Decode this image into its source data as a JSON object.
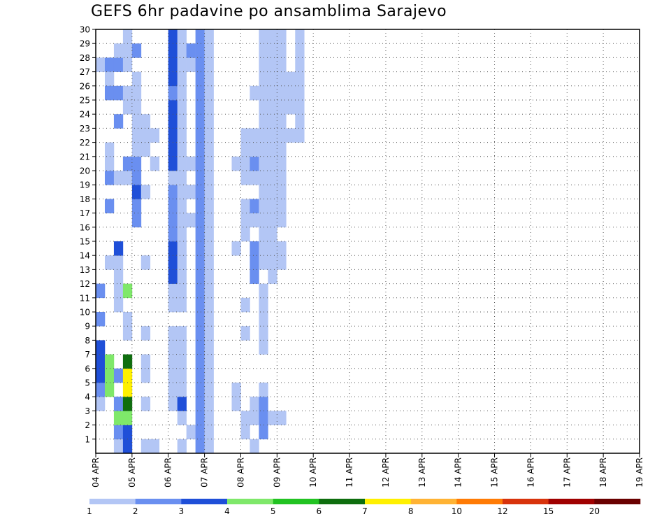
{
  "chart_data": {
    "type": "heatmap",
    "title": "GEFS 6hr padavine po ansamblima Sarajevo",
    "x_tick_labels": [
      "04 APR",
      "05 APR",
      "06 APR",
      "07 APR",
      "08 APR",
      "09 APR",
      "10 APR",
      "11 APR",
      "12 APR",
      "13 APR",
      "14 APR",
      "15 APR",
      "16 APR",
      "17 APR",
      "18 APR",
      "19 APR"
    ],
    "y_tick_labels": [
      "1",
      "2",
      "3",
      "4",
      "5",
      "6",
      "7",
      "8",
      "9",
      "10",
      "11",
      "12",
      "13",
      "14",
      "15",
      "16",
      "17",
      "18",
      "19",
      "20",
      "21",
      "22",
      "23",
      "24",
      "25",
      "26",
      "27",
      "28",
      "29",
      "30"
    ],
    "x_range": [
      "04 APR",
      "19 APR"
    ],
    "steps_per_day": 4,
    "y_range": [
      0,
      30
    ],
    "grid": true,
    "legend_position": "bottom",
    "legend_labels": [
      "1",
      "2",
      "3",
      "4",
      "5",
      "6",
      "7",
      "8",
      "10",
      "12",
      "15",
      "20"
    ],
    "colors": [
      "#b3c6f5",
      "#6a8ff0",
      "#1f4fd8",
      "#7fe86a",
      "#22c322",
      "#0e6e0e",
      "#fff000",
      "#ffb334",
      "#ff7b05",
      "#d8330c",
      "#a00000",
      "#6a0000"
    ],
    "cells": [
      [
        1,
        12,
        2
      ],
      [
        2,
        14,
        1
      ],
      [
        1,
        28,
        1
      ],
      [
        2,
        28,
        2
      ],
      [
        2,
        27,
        1
      ],
      [
        2,
        26,
        2
      ],
      [
        1,
        4,
        1
      ],
      [
        1,
        5,
        2
      ],
      [
        1,
        6,
        3
      ],
      [
        1,
        7,
        3
      ],
      [
        1,
        8,
        3
      ],
      [
        1,
        10,
        2
      ],
      [
        2,
        5,
        4
      ],
      [
        2,
        6,
        4
      ],
      [
        2,
        7,
        4
      ],
      [
        2,
        18,
        2
      ],
      [
        2,
        20,
        2
      ],
      [
        2,
        21,
        1
      ],
      [
        2,
        22,
        1
      ],
      [
        3,
        1,
        1
      ],
      [
        3,
        2,
        2
      ],
      [
        3,
        3,
        4
      ],
      [
        3,
        4,
        2
      ],
      [
        3,
        6,
        2
      ],
      [
        3,
        11,
        1
      ],
      [
        3,
        12,
        1
      ],
      [
        3,
        13,
        1
      ],
      [
        3,
        14,
        1
      ],
      [
        3,
        15,
        3
      ],
      [
        3,
        20,
        1
      ],
      [
        3,
        24,
        2
      ],
      [
        3,
        26,
        2
      ],
      [
        3,
        28,
        2
      ],
      [
        3,
        29,
        1
      ],
      [
        4,
        1,
        3
      ],
      [
        4,
        2,
        3
      ],
      [
        4,
        3,
        4
      ],
      [
        4,
        4,
        6
      ],
      [
        4,
        5,
        7
      ],
      [
        4,
        6,
        7
      ],
      [
        4,
        7,
        6
      ],
      [
        4,
        9,
        1
      ],
      [
        4,
        10,
        1
      ],
      [
        4,
        12,
        4
      ],
      [
        4,
        20,
        1
      ],
      [
        4,
        21,
        2
      ],
      [
        4,
        25,
        1
      ],
      [
        4,
        26,
        1
      ],
      [
        4,
        28,
        1
      ],
      [
        4,
        29,
        1
      ],
      [
        4,
        30,
        1
      ],
      [
        5,
        17,
        2
      ],
      [
        5,
        18,
        2
      ],
      [
        5,
        19,
        3
      ],
      [
        5,
        20,
        2
      ],
      [
        5,
        21,
        2
      ],
      [
        5,
        22,
        1
      ],
      [
        5,
        23,
        1
      ],
      [
        5,
        24,
        1
      ],
      [
        5,
        25,
        1
      ],
      [
        5,
        26,
        1
      ],
      [
        5,
        27,
        1
      ],
      [
        5,
        29,
        2
      ],
      [
        6,
        1,
        1
      ],
      [
        6,
        4,
        1
      ],
      [
        6,
        6,
        1
      ],
      [
        6,
        7,
        1
      ],
      [
        6,
        9,
        1
      ],
      [
        6,
        14,
        1
      ],
      [
        6,
        19,
        1
      ],
      [
        6,
        22,
        1
      ],
      [
        6,
        23,
        1
      ],
      [
        6,
        24,
        1
      ],
      [
        7,
        1,
        1
      ],
      [
        7,
        21,
        1
      ],
      [
        7,
        23,
        1
      ],
      [
        9,
        4,
        1
      ],
      [
        9,
        5,
        1
      ],
      [
        9,
        6,
        1
      ],
      [
        9,
        7,
        1
      ],
      [
        9,
        8,
        1
      ],
      [
        9,
        9,
        1
      ],
      [
        9,
        11,
        1
      ],
      [
        9,
        12,
        1
      ],
      [
        9,
        13,
        3
      ],
      [
        9,
        14,
        3
      ],
      [
        9,
        15,
        3
      ],
      [
        9,
        16,
        2
      ],
      [
        9,
        17,
        2
      ],
      [
        9,
        18,
        2
      ],
      [
        9,
        19,
        2
      ],
      [
        9,
        20,
        1
      ],
      [
        9,
        21,
        3
      ],
      [
        9,
        22,
        3
      ],
      [
        9,
        23,
        3
      ],
      [
        9,
        24,
        3
      ],
      [
        9,
        25,
        3
      ],
      [
        9,
        26,
        2
      ],
      [
        9,
        27,
        3
      ],
      [
        9,
        28,
        3
      ],
      [
        9,
        29,
        3
      ],
      [
        9,
        30,
        3
      ],
      [
        10,
        1,
        1
      ],
      [
        10,
        3,
        1
      ],
      [
        10,
        4,
        3
      ],
      [
        10,
        5,
        1
      ],
      [
        10,
        6,
        1
      ],
      [
        10,
        7,
        1
      ],
      [
        10,
        8,
        1
      ],
      [
        10,
        9,
        1
      ],
      [
        10,
        11,
        1
      ],
      [
        10,
        12,
        1
      ],
      [
        10,
        13,
        1
      ],
      [
        10,
        14,
        1
      ],
      [
        10,
        15,
        1
      ],
      [
        10,
        16,
        1
      ],
      [
        10,
        17,
        1
      ],
      [
        10,
        18,
        1
      ],
      [
        10,
        19,
        1
      ],
      [
        10,
        20,
        1
      ],
      [
        10,
        21,
        1
      ],
      [
        10,
        22,
        1
      ],
      [
        10,
        23,
        1
      ],
      [
        10,
        24,
        1
      ],
      [
        10,
        25,
        1
      ],
      [
        10,
        26,
        1
      ],
      [
        10,
        27,
        1
      ],
      [
        10,
        28,
        1
      ],
      [
        10,
        29,
        1
      ],
      [
        10,
        30,
        1
      ],
      [
        11,
        2,
        1
      ],
      [
        11,
        17,
        1
      ],
      [
        11,
        19,
        1
      ],
      [
        11,
        21,
        1
      ],
      [
        11,
        28,
        1
      ],
      [
        11,
        29,
        2
      ],
      [
        12,
        1,
        2
      ],
      [
        12,
        2,
        2
      ],
      [
        12,
        3,
        2
      ],
      [
        12,
        4,
        2
      ],
      [
        12,
        5,
        2
      ],
      [
        12,
        6,
        2
      ],
      [
        12,
        7,
        2
      ],
      [
        12,
        8,
        2
      ],
      [
        12,
        9,
        2
      ],
      [
        12,
        10,
        2
      ],
      [
        12,
        11,
        2
      ],
      [
        12,
        12,
        2
      ],
      [
        12,
        13,
        2
      ],
      [
        12,
        14,
        2
      ],
      [
        12,
        15,
        2
      ],
      [
        12,
        16,
        2
      ],
      [
        12,
        17,
        2
      ],
      [
        12,
        18,
        2
      ],
      [
        12,
        19,
        2
      ],
      [
        12,
        20,
        2
      ],
      [
        12,
        21,
        2
      ],
      [
        12,
        22,
        2
      ],
      [
        12,
        23,
        2
      ],
      [
        12,
        24,
        2
      ],
      [
        12,
        25,
        2
      ],
      [
        12,
        26,
        2
      ],
      [
        12,
        27,
        2
      ],
      [
        12,
        28,
        2
      ],
      [
        12,
        29,
        2
      ],
      [
        12,
        30,
        2
      ],
      [
        13,
        1,
        1
      ],
      [
        13,
        2,
        1
      ],
      [
        13,
        3,
        1
      ],
      [
        13,
        4,
        1
      ],
      [
        13,
        5,
        1
      ],
      [
        13,
        6,
        1
      ],
      [
        13,
        7,
        1
      ],
      [
        13,
        8,
        1
      ],
      [
        13,
        9,
        1
      ],
      [
        13,
        10,
        1
      ],
      [
        13,
        11,
        1
      ],
      [
        13,
        12,
        1
      ],
      [
        13,
        13,
        1
      ],
      [
        13,
        14,
        1
      ],
      [
        13,
        15,
        1
      ],
      [
        13,
        16,
        1
      ],
      [
        13,
        17,
        1
      ],
      [
        13,
        18,
        1
      ],
      [
        13,
        19,
        1
      ],
      [
        13,
        20,
        1
      ],
      [
        13,
        21,
        1
      ],
      [
        13,
        22,
        1
      ],
      [
        13,
        23,
        1
      ],
      [
        13,
        24,
        1
      ],
      [
        13,
        25,
        1
      ],
      [
        13,
        26,
        1
      ],
      [
        13,
        27,
        1
      ],
      [
        13,
        28,
        1
      ],
      [
        13,
        29,
        1
      ],
      [
        13,
        30,
        1
      ],
      [
        16,
        4,
        1
      ],
      [
        16,
        5,
        1
      ],
      [
        16,
        15,
        1
      ],
      [
        16,
        21,
        1
      ],
      [
        17,
        2,
        1
      ],
      [
        17,
        3,
        1
      ],
      [
        17,
        9,
        1
      ],
      [
        17,
        11,
        1
      ],
      [
        17,
        16,
        1
      ],
      [
        17,
        17,
        1
      ],
      [
        17,
        18,
        1
      ],
      [
        17,
        20,
        1
      ],
      [
        17,
        21,
        1
      ],
      [
        17,
        22,
        1
      ],
      [
        17,
        23,
        1
      ],
      [
        18,
        1,
        1
      ],
      [
        18,
        3,
        1
      ],
      [
        18,
        4,
        1
      ],
      [
        18,
        13,
        2
      ],
      [
        18,
        14,
        2
      ],
      [
        18,
        15,
        2
      ],
      [
        18,
        17,
        1
      ],
      [
        18,
        18,
        2
      ],
      [
        18,
        20,
        1
      ],
      [
        18,
        21,
        2
      ],
      [
        18,
        22,
        1
      ],
      [
        18,
        23,
        1
      ],
      [
        18,
        26,
        1
      ],
      [
        19,
        2,
        2
      ],
      [
        19,
        3,
        2
      ],
      [
        19,
        4,
        2
      ],
      [
        19,
        5,
        1
      ],
      [
        19,
        8,
        1
      ],
      [
        19,
        9,
        1
      ],
      [
        19,
        10,
        1
      ],
      [
        19,
        11,
        1
      ],
      [
        19,
        12,
        1
      ],
      [
        19,
        14,
        1
      ],
      [
        19,
        15,
        1
      ],
      [
        19,
        16,
        1
      ],
      [
        19,
        17,
        1
      ],
      [
        19,
        18,
        1
      ],
      [
        19,
        19,
        1
      ],
      [
        19,
        20,
        1
      ],
      [
        19,
        21,
        1
      ],
      [
        19,
        22,
        1
      ],
      [
        19,
        23,
        1
      ],
      [
        19,
        24,
        1
      ],
      [
        19,
        25,
        1
      ],
      [
        19,
        26,
        1
      ],
      [
        19,
        27,
        1
      ],
      [
        19,
        28,
        1
      ],
      [
        19,
        29,
        1
      ],
      [
        19,
        30,
        1
      ],
      [
        20,
        3,
        1
      ],
      [
        20,
        13,
        1
      ],
      [
        20,
        14,
        1
      ],
      [
        20,
        15,
        1
      ],
      [
        20,
        16,
        1
      ],
      [
        20,
        17,
        1
      ],
      [
        20,
        18,
        1
      ],
      [
        20,
        19,
        1
      ],
      [
        20,
        20,
        1
      ],
      [
        20,
        21,
        1
      ],
      [
        20,
        22,
        1
      ],
      [
        20,
        23,
        1
      ],
      [
        20,
        24,
        1
      ],
      [
        20,
        25,
        1
      ],
      [
        20,
        26,
        1
      ],
      [
        20,
        27,
        1
      ],
      [
        20,
        28,
        1
      ],
      [
        20,
        29,
        1
      ],
      [
        20,
        30,
        1
      ],
      [
        21,
        3,
        1
      ],
      [
        21,
        14,
        1
      ],
      [
        21,
        15,
        1
      ],
      [
        21,
        17,
        1
      ],
      [
        21,
        18,
        1
      ],
      [
        21,
        19,
        1
      ],
      [
        21,
        20,
        1
      ],
      [
        21,
        21,
        1
      ],
      [
        21,
        22,
        1
      ],
      [
        21,
        23,
        1
      ],
      [
        21,
        24,
        1
      ],
      [
        21,
        25,
        1
      ],
      [
        21,
        26,
        1
      ],
      [
        21,
        27,
        1
      ],
      [
        21,
        28,
        1
      ],
      [
        21,
        29,
        1
      ],
      [
        21,
        30,
        1
      ],
      [
        22,
        23,
        1
      ],
      [
        22,
        25,
        1
      ],
      [
        22,
        26,
        1
      ],
      [
        22,
        27,
        1
      ],
      [
        23,
        23,
        1
      ],
      [
        23,
        24,
        1
      ],
      [
        23,
        25,
        1
      ],
      [
        23,
        26,
        1
      ],
      [
        23,
        27,
        1
      ],
      [
        23,
        28,
        1
      ],
      [
        23,
        29,
        1
      ],
      [
        23,
        30,
        1
      ]
    ]
  }
}
